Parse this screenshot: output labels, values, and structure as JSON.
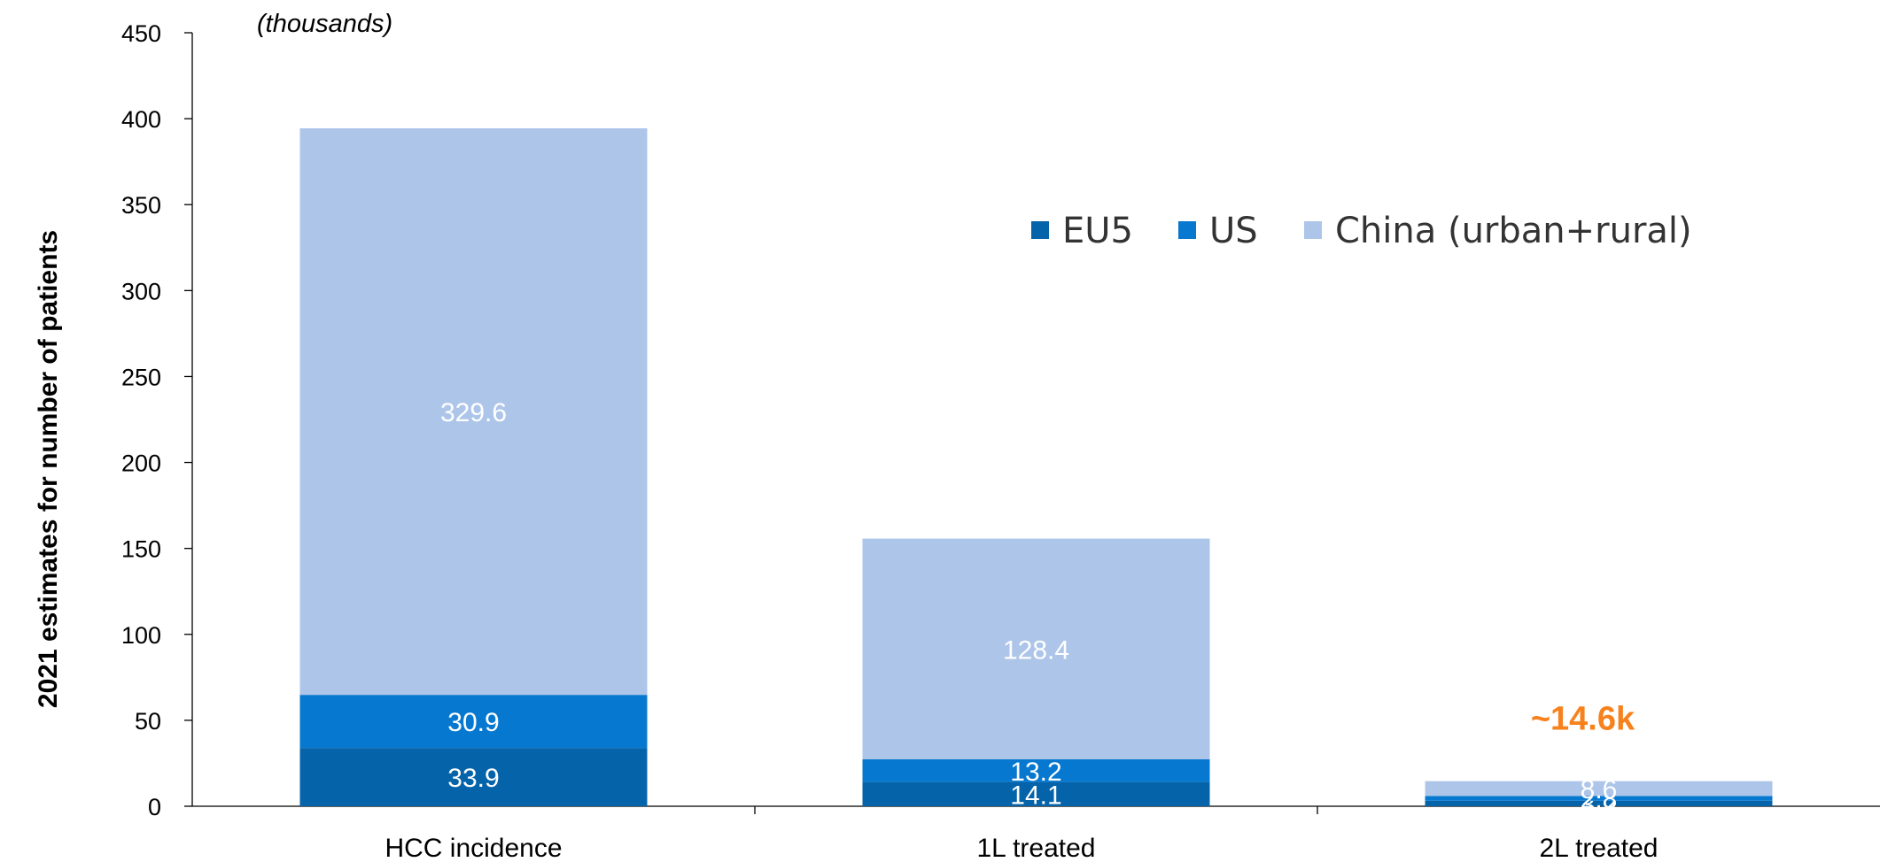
{
  "chart_data": {
    "type": "bar",
    "stacked": true,
    "units_note": "(thousands)",
    "ylabel": "2021 estimates for number of patients",
    "xlabel": "",
    "ylim": [
      0,
      450
    ],
    "yticks": [
      0,
      50,
      100,
      150,
      200,
      250,
      300,
      350,
      400,
      450
    ],
    "categories": [
      "HCC incidence",
      "1L treated",
      "2L treated"
    ],
    "series": [
      {
        "name": "EU5",
        "color": "#0563a9",
        "values": [
          33.9,
          14.1,
          3.2
        ],
        "labels": [
          "33.9",
          "14.1",
          "3.2"
        ]
      },
      {
        "name": "US",
        "color": "#0678cf",
        "values": [
          30.9,
          13.2,
          2.8
        ],
        "labels": [
          "30.9",
          "13.2",
          "2.8"
        ]
      },
      {
        "name": "China (urban+rural)",
        "color": "#adc5e9",
        "values": [
          329.6,
          128.4,
          8.6
        ],
        "labels": [
          "329.6",
          "128.4",
          "8.6"
        ]
      }
    ],
    "legend_position": "top-right",
    "grid": false,
    "annotation": {
      "text": "~14.6k",
      "color": "#f7811c",
      "category": "2L treated"
    }
  }
}
